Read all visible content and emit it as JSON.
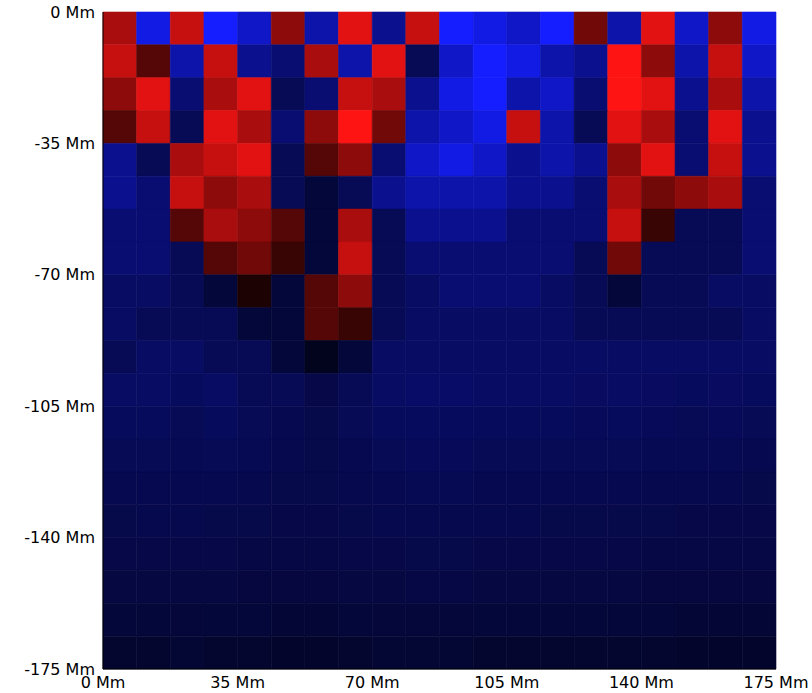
{
  "chart_data": {
    "type": "heatmap",
    "xlim": [
      0,
      175
    ],
    "ylim": [
      -175,
      0
    ],
    "xticks": [
      {
        "value": 0,
        "label": "0 Mm"
      },
      {
        "value": 35,
        "label": "35 Mm"
      },
      {
        "value": 70,
        "label": "70 Mm"
      },
      {
        "value": 105,
        "label": "105 Mm"
      },
      {
        "value": 140,
        "label": "140 Mm"
      },
      {
        "value": 175,
        "label": "175 Mm"
      }
    ],
    "yticks": [
      {
        "value": 0,
        "label": "0 Mm"
      },
      {
        "value": -35,
        "label": "-35 Mm"
      },
      {
        "value": -70,
        "label": "-70 Mm"
      },
      {
        "value": -105,
        "label": "-105 Mm"
      },
      {
        "value": -140,
        "label": "-140 Mm"
      },
      {
        "value": -175,
        "label": "-175 Mm"
      }
    ],
    "x_bins": [
      0,
      8.75,
      17.5,
      26.25,
      35,
      43.75,
      52.5,
      61.25,
      70,
      78.75,
      87.5,
      96.25,
      105,
      113.75,
      122.5,
      131.25,
      140,
      148.75,
      157.5,
      166.25,
      175
    ],
    "y_bins": [
      0,
      -8.75,
      -17.5,
      -26.25,
      -35,
      -43.75,
      -52.5,
      -61.25,
      -70,
      -78.75,
      -87.5,
      -96.25,
      -105,
      -113.75,
      -122.5,
      -131.25,
      -140,
      -148.75,
      -157.5,
      -166.25,
      -175
    ],
    "cells": [
      [
        0.6,
        -0.8,
        0.7,
        -0.9,
        -0.7,
        0.5,
        -0.6,
        0.8,
        -0.5,
        0.7,
        -0.9,
        -0.8,
        -0.7,
        -0.9,
        0.4,
        -0.6,
        0.8,
        -0.7,
        0.5,
        -0.8
      ],
      [
        0.7,
        0.3,
        -0.6,
        0.7,
        -0.5,
        -0.4,
        0.6,
        -0.6,
        0.8,
        -0.3,
        -0.7,
        -0.9,
        -0.8,
        -0.6,
        -0.5,
        0.9,
        0.5,
        -0.6,
        0.7,
        -0.7
      ],
      [
        0.5,
        0.8,
        -0.4,
        0.6,
        0.8,
        -0.3,
        -0.4,
        0.7,
        0.6,
        -0.5,
        -0.8,
        -0.9,
        -0.6,
        -0.7,
        -0.4,
        0.9,
        0.8,
        -0.5,
        0.6,
        -0.6
      ],
      [
        0.3,
        0.7,
        -0.3,
        0.8,
        0.6,
        -0.4,
        0.5,
        0.9,
        0.4,
        -0.6,
        -0.7,
        -0.8,
        0.7,
        -0.6,
        -0.3,
        0.8,
        0.6,
        -0.4,
        0.8,
        -0.5
      ],
      [
        -0.5,
        -0.3,
        0.6,
        0.7,
        0.8,
        -0.3,
        0.3,
        0.5,
        -0.4,
        -0.7,
        -0.8,
        -0.7,
        -0.5,
        -0.6,
        -0.5,
        0.5,
        0.8,
        -0.4,
        0.7,
        -0.5
      ],
      [
        -0.5,
        -0.4,
        0.7,
        0.5,
        0.6,
        -0.3,
        -0.2,
        -0.3,
        -0.5,
        -0.6,
        -0.6,
        -0.6,
        -0.5,
        -0.5,
        -0.4,
        0.6,
        0.4,
        0.5,
        0.6,
        -0.4
      ],
      [
        -0.4,
        -0.4,
        0.3,
        0.6,
        0.5,
        0.3,
        -0.2,
        0.6,
        -0.3,
        -0.5,
        -0.5,
        -0.5,
        -0.4,
        -0.4,
        -0.4,
        0.7,
        0.2,
        -0.3,
        -0.3,
        -0.4
      ],
      [
        -0.4,
        -0.4,
        -0.3,
        0.3,
        0.4,
        0.2,
        -0.2,
        0.7,
        -0.3,
        -0.4,
        -0.4,
        -0.4,
        -0.4,
        -0.4,
        -0.3,
        0.4,
        -0.3,
        -0.3,
        -0.3,
        -0.4
      ],
      [
        -0.35,
        -0.35,
        -0.3,
        -0.2,
        0.1,
        -0.2,
        0.3,
        0.5,
        -0.3,
        -0.35,
        -0.4,
        -0.4,
        -0.4,
        -0.35,
        -0.3,
        -0.2,
        -0.3,
        -0.3,
        -0.35,
        -0.35
      ],
      [
        -0.35,
        -0.3,
        -0.3,
        -0.3,
        -0.2,
        -0.2,
        0.3,
        0.2,
        -0.3,
        -0.35,
        -0.35,
        -0.35,
        -0.35,
        -0.35,
        -0.3,
        -0.3,
        -0.3,
        -0.3,
        -0.3,
        -0.35
      ],
      [
        -0.3,
        -0.35,
        -0.35,
        -0.3,
        -0.3,
        -0.2,
        -0.1,
        -0.2,
        -0.35,
        -0.35,
        -0.35,
        -0.35,
        -0.35,
        -0.35,
        -0.35,
        -0.35,
        -0.35,
        -0.35,
        -0.35,
        -0.35
      ],
      [
        -0.35,
        -0.35,
        -0.33,
        -0.35,
        -0.3,
        -0.3,
        -0.25,
        -0.3,
        -0.35,
        -0.36,
        -0.36,
        -0.35,
        -0.35,
        -0.35,
        -0.34,
        -0.35,
        -0.34,
        -0.33,
        -0.34,
        -0.33
      ],
      [
        -0.32,
        -0.32,
        -0.3,
        -0.32,
        -0.3,
        -0.28,
        -0.26,
        -0.3,
        -0.32,
        -0.33,
        -0.33,
        -0.32,
        -0.32,
        -0.32,
        -0.31,
        -0.32,
        -0.31,
        -0.3,
        -0.31,
        -0.3
      ],
      [
        -0.3,
        -0.3,
        -0.29,
        -0.3,
        -0.29,
        -0.27,
        -0.26,
        -0.28,
        -0.3,
        -0.31,
        -0.31,
        -0.3,
        -0.3,
        -0.3,
        -0.3,
        -0.3,
        -0.29,
        -0.29,
        -0.29,
        -0.28
      ],
      [
        -0.28,
        -0.28,
        -0.28,
        -0.28,
        -0.27,
        -0.26,
        -0.26,
        -0.27,
        -0.28,
        -0.29,
        -0.29,
        -0.28,
        -0.28,
        -0.28,
        -0.28,
        -0.28,
        -0.27,
        -0.27,
        -0.27,
        -0.26
      ],
      [
        -0.26,
        -0.27,
        -0.27,
        -0.26,
        -0.26,
        -0.25,
        -0.25,
        -0.26,
        -0.27,
        -0.27,
        -0.27,
        -0.27,
        -0.27,
        -0.26,
        -0.26,
        -0.26,
        -0.26,
        -0.25,
        -0.25,
        -0.25
      ],
      [
        -0.25,
        -0.25,
        -0.25,
        -0.25,
        -0.24,
        -0.24,
        -0.24,
        -0.25,
        -0.25,
        -0.26,
        -0.26,
        -0.25,
        -0.25,
        -0.25,
        -0.25,
        -0.25,
        -0.24,
        -0.24,
        -0.24,
        -0.24
      ],
      [
        -0.23,
        -0.23,
        -0.23,
        -0.23,
        -0.22,
        -0.22,
        -0.22,
        -0.23,
        -0.23,
        -0.24,
        -0.24,
        -0.23,
        -0.23,
        -0.23,
        -0.23,
        -0.23,
        -0.22,
        -0.22,
        -0.22,
        -0.22
      ],
      [
        -0.2,
        -0.2,
        -0.21,
        -0.2,
        -0.2,
        -0.19,
        -0.19,
        -0.2,
        -0.21,
        -0.21,
        -0.21,
        -0.2,
        -0.2,
        -0.2,
        -0.2,
        -0.2,
        -0.2,
        -0.19,
        -0.19,
        -0.19
      ],
      [
        -0.17,
        -0.17,
        -0.18,
        -0.17,
        -0.17,
        -0.16,
        -0.16,
        -0.17,
        -0.18,
        -0.18,
        -0.18,
        -0.17,
        -0.17,
        -0.17,
        -0.17,
        -0.17,
        -0.17,
        -0.16,
        -0.16,
        -0.16
      ]
    ]
  }
}
